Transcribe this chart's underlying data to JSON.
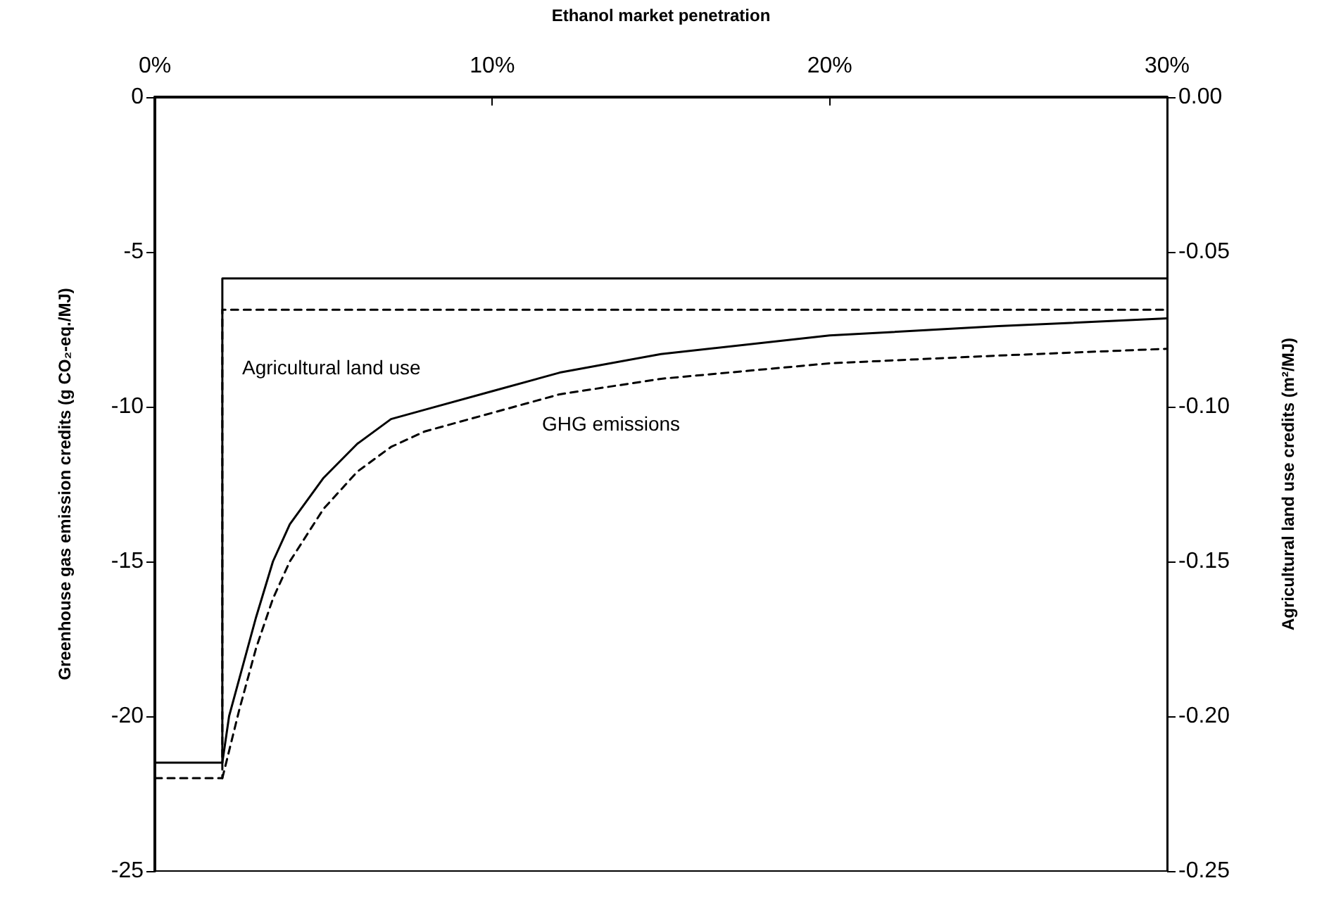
{
  "chart_data": {
    "type": "line",
    "xlabel": "Ethanol market penetration",
    "ylabel": "Greenhouse gas emission credits (g CO₂-eq./MJ)",
    "y2label": "Agricultural land use credits (m²/MJ)",
    "xlim": [
      0,
      30
    ],
    "xticks": [
      {
        "value": 0,
        "label": "0%"
      },
      {
        "value": 10,
        "label": "10%"
      },
      {
        "value": 20,
        "label": "20%"
      },
      {
        "value": 30,
        "label": "30%"
      }
    ],
    "ylim": [
      -25,
      0
    ],
    "yticks": [
      -25,
      -20,
      -15,
      -10,
      -5,
      0
    ],
    "y2lim": [
      -0.25,
      0
    ],
    "y2ticks": [
      {
        "value": -0.25,
        "label": "-0.25"
      },
      {
        "value": -0.2,
        "label": "-0.20"
      },
      {
        "value": -0.15,
        "label": "-0.15"
      },
      {
        "value": -0.1,
        "label": "-0.10"
      },
      {
        "value": -0.05,
        "label": "-0.05"
      },
      {
        "value": 0,
        "label": "0.00"
      }
    ],
    "marker": "none",
    "grid": false,
    "series": [
      {
        "color": "#000000",
        "line_style": "solid",
        "axis": "y2",
        "x": [
          0,
          2,
          2,
          30
        ],
        "values": [
          -0.215,
          -0.215,
          -0.0586,
          -0.0586
        ]
      },
      {
        "color": "#000000",
        "line_style": "solid",
        "axis": "y2",
        "x": [
          2,
          2.2,
          2.5,
          3,
          3.5,
          4,
          5,
          6,
          7,
          8,
          10,
          12,
          15,
          20,
          25,
          30
        ],
        "values": [
          -0.215,
          -0.2,
          -0.188,
          -0.168,
          -0.15,
          -0.138,
          -0.123,
          -0.112,
          -0.104,
          -0.101,
          -0.095,
          -0.089,
          -0.083,
          -0.077,
          -0.074,
          -0.0715
        ]
      },
      {
        "color": "#000000",
        "line_style": "dashed",
        "x": [
          0,
          2,
          2,
          30
        ],
        "values": [
          -22.0,
          -22.0,
          -6.87,
          -6.87
        ]
      },
      {
        "color": "#000000",
        "line_style": "dashed",
        "x": [
          2,
          2.5,
          3,
          3.5,
          4,
          5,
          6,
          7,
          8,
          10,
          12,
          15,
          20,
          25,
          30
        ],
        "values": [
          -22.0,
          -19.8,
          -17.8,
          -16.2,
          -15.0,
          -13.3,
          -12.1,
          -11.3,
          -10.8,
          -10.2,
          -9.6,
          -9.1,
          -8.6,
          -8.35,
          -8.13
        ]
      }
    ],
    "annotations": [
      "Agricultural land use",
      "GHG emissions"
    ]
  }
}
